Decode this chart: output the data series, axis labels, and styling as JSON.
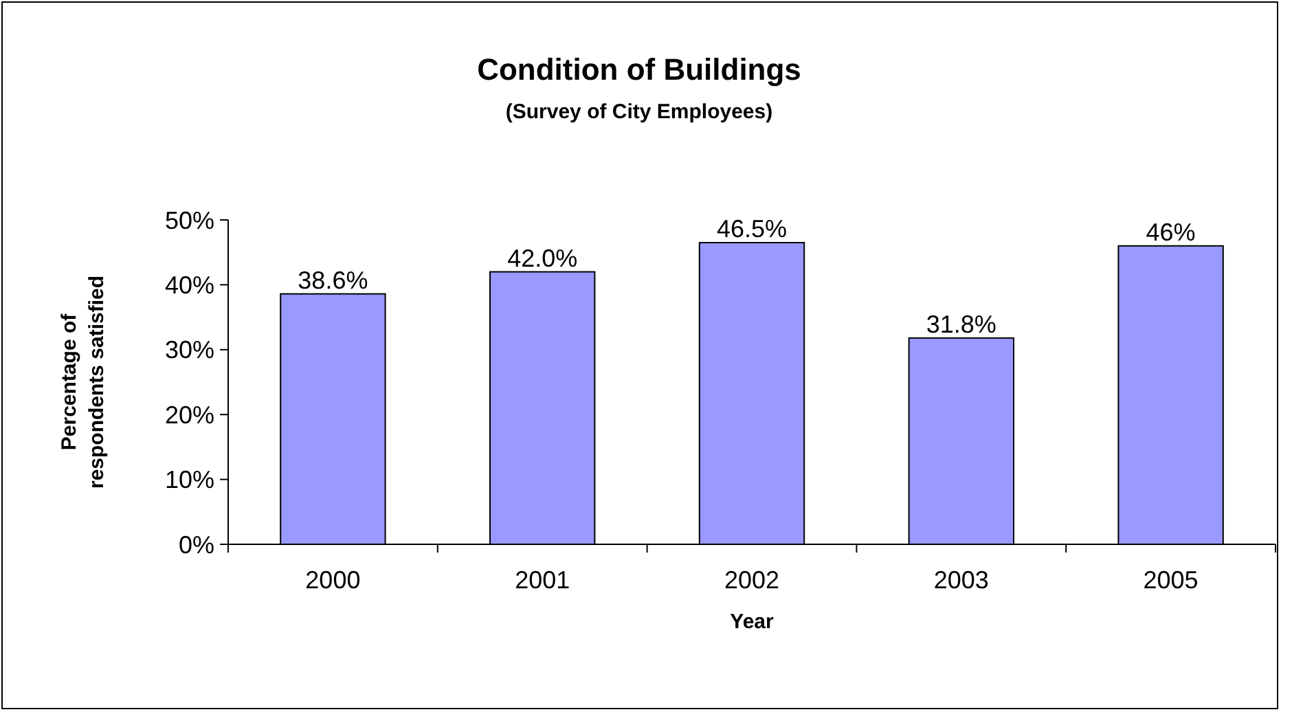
{
  "chart_data": {
    "type": "bar",
    "title": "Condition of Buildings",
    "subtitle": "(Survey of City Employees)",
    "xlabel": "Year",
    "ylabel": "Percentage of\nrespondents satisfied",
    "categories": [
      "2000",
      "2001",
      "2002",
      "2003",
      "2005"
    ],
    "values": [
      38.6,
      42.0,
      46.5,
      31.8,
      46
    ],
    "value_labels": [
      "38.6%",
      "42.0%",
      "46.5%",
      "31.8%",
      "46%"
    ],
    "color": "#9999ff",
    "ylim": [
      0,
      50
    ],
    "yticks": [
      {
        "value": 0,
        "label": "0%"
      },
      {
        "value": 10,
        "label": "10%"
      },
      {
        "value": 20,
        "label": "20%"
      },
      {
        "value": 30,
        "label": "30%"
      },
      {
        "value": 40,
        "label": "40%"
      },
      {
        "value": 50,
        "label": "50%"
      }
    ],
    "grid": false
  }
}
